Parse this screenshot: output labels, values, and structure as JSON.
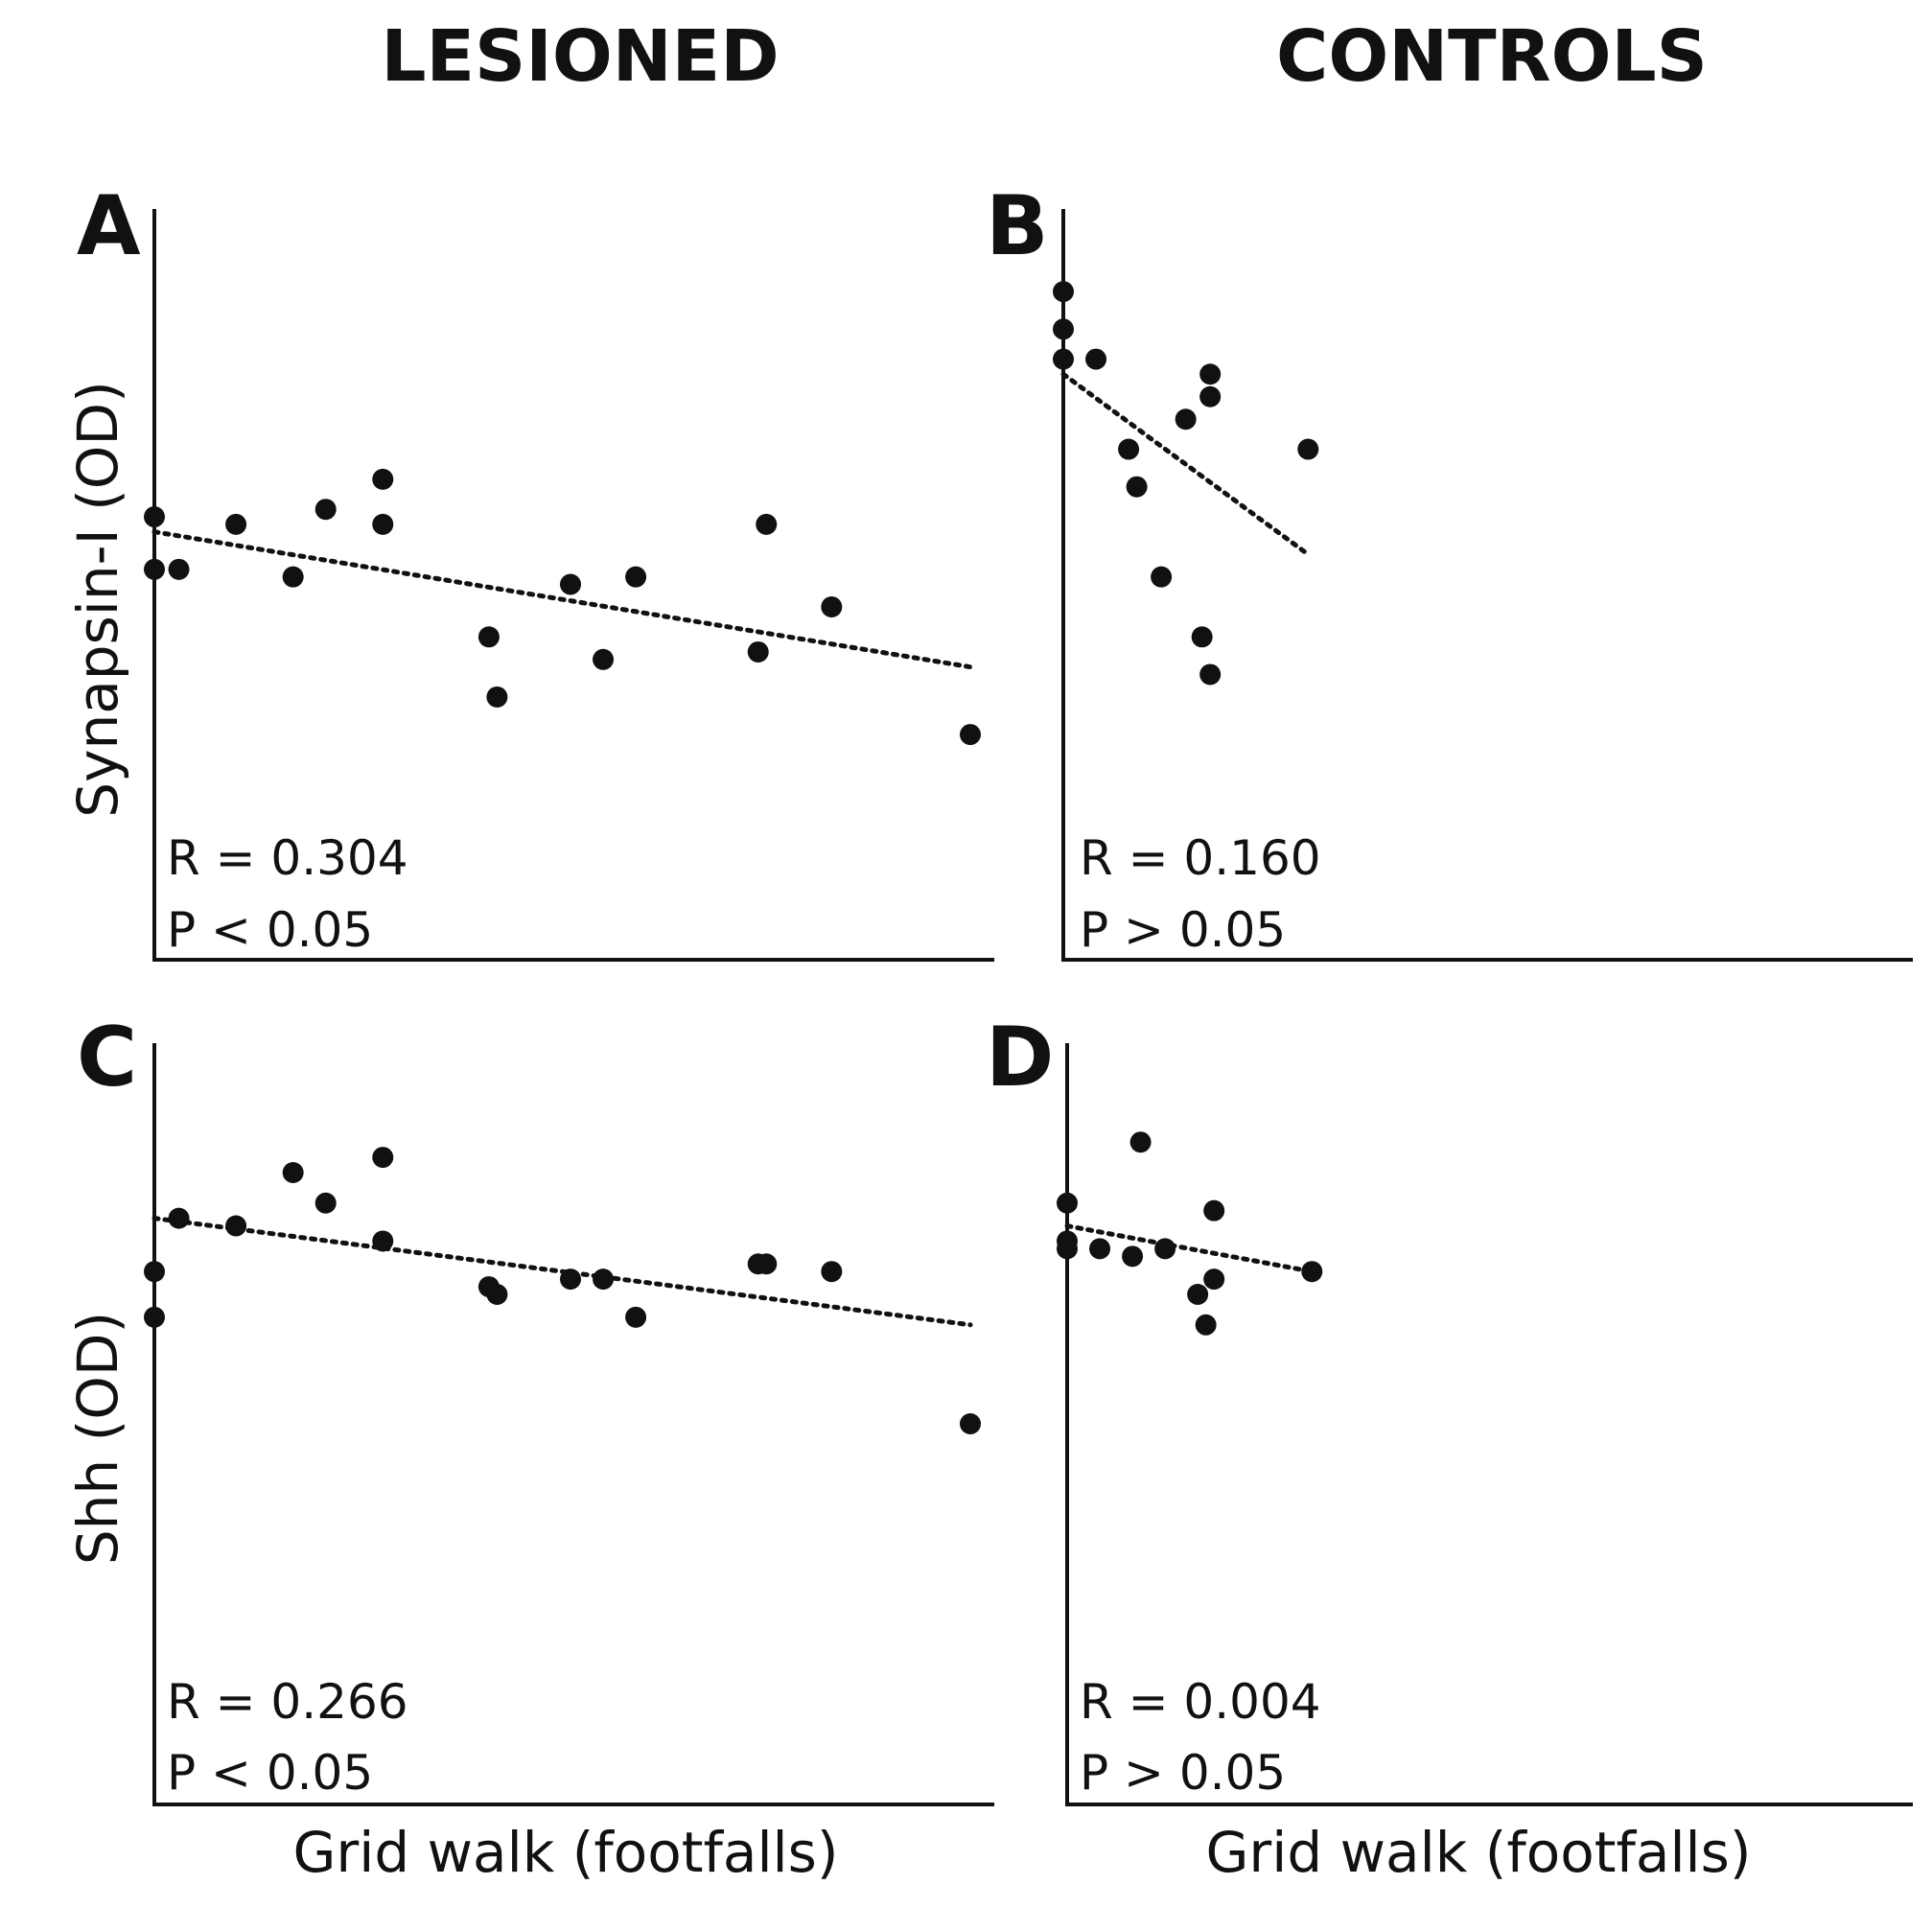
{
  "column_titles": [
    "LESIONED",
    "CONTROLS"
  ],
  "row_labels": [
    "Synapsin-I (OD)",
    "Shh (OD)"
  ],
  "x_axis_label": "Grid walk (footfalls)",
  "colors": {
    "points": "#111111",
    "axes": "#111111",
    "trend": "#111111",
    "background": "#ffffff"
  },
  "chart_data": [
    {
      "panel": "A",
      "type": "scatter",
      "group": "LESIONED",
      "xlabel": "Grid walk (footfalls)",
      "ylabel": "Synapsin-I (OD)",
      "xlim": [
        0,
        100
      ],
      "ylim": [
        0,
        100
      ],
      "stats": {
        "r": "R = 0.304",
        "p": "P < 0.05"
      },
      "points": [
        [
          0,
          59
        ],
        [
          0,
          52
        ],
        [
          3,
          52
        ],
        [
          10,
          58
        ],
        [
          17,
          51
        ],
        [
          21,
          60
        ],
        [
          28,
          64
        ],
        [
          28,
          58
        ],
        [
          41,
          43
        ],
        [
          42,
          35
        ],
        [
          51,
          50
        ],
        [
          55,
          40
        ],
        [
          59,
          51
        ],
        [
          74,
          41
        ],
        [
          75,
          58
        ],
        [
          83,
          47
        ],
        [
          100,
          30
        ]
      ],
      "trend": [
        [
          0,
          57
        ],
        [
          100,
          39
        ]
      ]
    },
    {
      "panel": "B",
      "type": "scatter",
      "group": "CONTROLS",
      "xlabel": "Grid walk (footfalls)",
      "ylabel": "Synapsin-I (OD)",
      "xlim": [
        0,
        100
      ],
      "ylim": [
        0,
        100
      ],
      "stats": {
        "r": "R = 0.160",
        "p": "P > 0.05"
      },
      "points": [
        [
          0,
          89
        ],
        [
          0,
          84
        ],
        [
          0,
          80
        ],
        [
          4,
          80
        ],
        [
          8,
          68
        ],
        [
          9,
          63
        ],
        [
          12,
          51
        ],
        [
          15,
          72
        ],
        [
          17,
          43
        ],
        [
          18,
          78
        ],
        [
          18,
          75
        ],
        [
          18,
          38
        ],
        [
          30,
          68
        ]
      ],
      "trend": [
        [
          0,
          78
        ],
        [
          30,
          54
        ]
      ]
    },
    {
      "panel": "C",
      "type": "scatter",
      "group": "LESIONED",
      "xlabel": "Grid walk (footfalls)",
      "ylabel": "Shh (OD)",
      "xlim": [
        0,
        100
      ],
      "ylim": [
        0,
        100
      ],
      "stats": {
        "r": "R = 0.266",
        "p": "P < 0.05"
      },
      "points": [
        [
          0,
          70
        ],
        [
          0,
          64
        ],
        [
          3,
          77
        ],
        [
          10,
          76
        ],
        [
          17,
          83
        ],
        [
          21,
          79
        ],
        [
          28,
          85
        ],
        [
          28,
          74
        ],
        [
          41,
          68
        ],
        [
          42,
          67
        ],
        [
          51,
          69
        ],
        [
          55,
          69
        ],
        [
          59,
          64
        ],
        [
          74,
          71
        ],
        [
          75,
          71
        ],
        [
          83,
          70
        ],
        [
          100,
          50
        ]
      ],
      "trend": [
        [
          0,
          77
        ],
        [
          100,
          63
        ]
      ]
    },
    {
      "panel": "D",
      "type": "scatter",
      "group": "CONTROLS",
      "xlabel": "Grid walk (footfalls)",
      "ylabel": "Shh (OD)",
      "xlim": [
        0,
        100
      ],
      "ylim": [
        0,
        100
      ],
      "stats": {
        "r": "R = 0.004",
        "p": "P > 0.05"
      },
      "points": [
        [
          0,
          79
        ],
        [
          0,
          74
        ],
        [
          0,
          73
        ],
        [
          4,
          73
        ],
        [
          8,
          72
        ],
        [
          9,
          87
        ],
        [
          12,
          73
        ],
        [
          16,
          67
        ],
        [
          17,
          63
        ],
        [
          18,
          78
        ],
        [
          18,
          69
        ],
        [
          30,
          70
        ]
      ],
      "trend": [
        [
          0,
          76
        ],
        [
          30,
          70
        ]
      ]
    }
  ]
}
